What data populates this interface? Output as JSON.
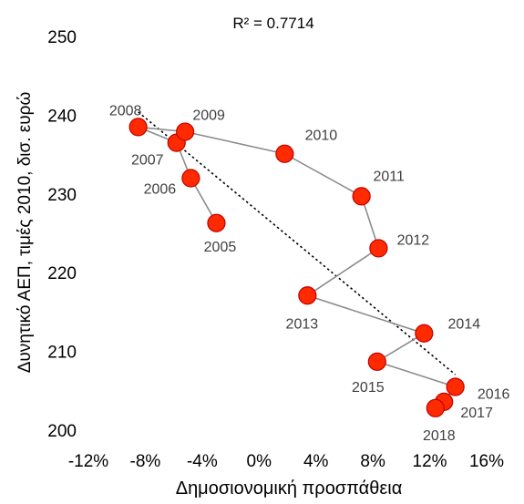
{
  "chart_data": {
    "type": "scatter",
    "annotation": "R² = 0.7714",
    "xlabel": "Δημοσιονομική προσπάθεια",
    "ylabel": "Δυνητικό ΑΕΠ, τιμές 2010,   δισ. ευρώ",
    "xlim": [
      -0.12,
      0.16
    ],
    "ylim": [
      200,
      250
    ],
    "x_ticks": [
      -0.12,
      -0.08,
      -0.04,
      0.0,
      0.04,
      0.08,
      0.12,
      0.16
    ],
    "x_tick_labels": [
      "-12%",
      "-8%",
      "-4%",
      "0%",
      "4%",
      "8%",
      "12%",
      "16%"
    ],
    "y_ticks": [
      200,
      210,
      220,
      230,
      240,
      250
    ],
    "y_tick_labels": [
      "200",
      "210",
      "220",
      "230",
      "240",
      "250"
    ],
    "grid": false,
    "connected_line": true,
    "trendline": "linear, dotted",
    "marker_color": "#ff2a00",
    "marker_edge_color": "#c00000",
    "line_color": "#8c8c8c",
    "points": [
      {
        "label": "2005",
        "x": -0.03,
        "y": 226.3
      },
      {
        "label": "2006",
        "x": -0.048,
        "y": 232.0
      },
      {
        "label": "2007",
        "x": -0.058,
        "y": 236.5
      },
      {
        "label": "2008",
        "x": -0.085,
        "y": 238.5
      },
      {
        "label": "2009",
        "x": -0.052,
        "y": 237.9
      },
      {
        "label": "2010",
        "x": 0.018,
        "y": 235.1
      },
      {
        "label": "2011",
        "x": 0.072,
        "y": 229.7
      },
      {
        "label": "2012",
        "x": 0.084,
        "y": 223.1
      },
      {
        "label": "2013",
        "x": 0.034,
        "y": 217.1
      },
      {
        "label": "2014",
        "x": 0.116,
        "y": 212.3
      },
      {
        "label": "2015",
        "x": 0.083,
        "y": 208.7
      },
      {
        "label": "2016",
        "x": 0.138,
        "y": 205.5
      },
      {
        "label": "2017",
        "x": 0.13,
        "y": 203.6
      },
      {
        "label": "2018",
        "x": 0.124,
        "y": 202.8
      }
    ]
  }
}
